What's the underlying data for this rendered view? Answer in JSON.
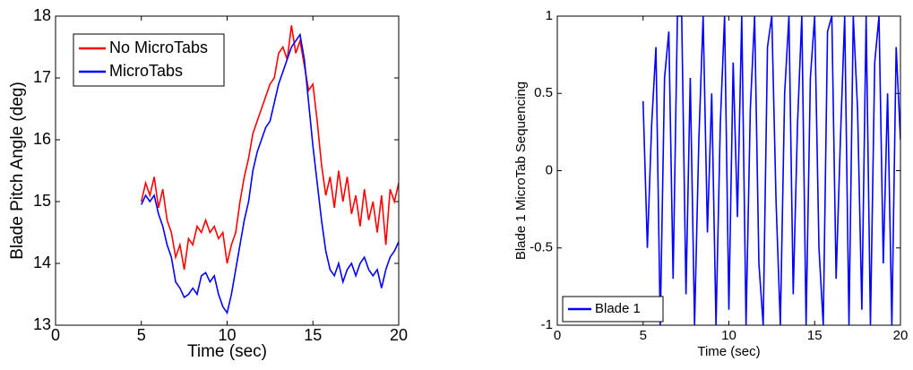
{
  "chart_data": [
    {
      "type": "line",
      "xlabel": "Time (sec)",
      "ylabel": "Blade Pitch Angle (deg)",
      "x": [
        5,
        5.25,
        5.5,
        5.75,
        6,
        6.25,
        6.5,
        6.75,
        7,
        7.25,
        7.5,
        7.75,
        8,
        8.25,
        8.5,
        8.75,
        9,
        9.25,
        9.5,
        9.75,
        10,
        10.25,
        10.5,
        10.75,
        11,
        11.25,
        11.5,
        11.75,
        12,
        12.25,
        12.5,
        12.75,
        13,
        13.25,
        13.5,
        13.75,
        14,
        14.25,
        14.5,
        14.75,
        15,
        15.25,
        15.5,
        15.75,
        16,
        16.25,
        16.5,
        16.75,
        17,
        17.25,
        17.5,
        17.75,
        18,
        18.25,
        18.5,
        18.75,
        19,
        19.25,
        19.5,
        19.75,
        20
      ],
      "series": [
        {
          "name": "No MicroTabs",
          "color": "#ff0000",
          "values": [
            15.0,
            15.3,
            15.1,
            15.4,
            14.9,
            15.2,
            14.7,
            14.5,
            14.1,
            14.3,
            13.9,
            14.4,
            14.3,
            14.6,
            14.5,
            14.7,
            14.5,
            14.6,
            14.4,
            14.5,
            14.0,
            14.3,
            14.5,
            15.0,
            15.4,
            15.7,
            16.1,
            16.3,
            16.5,
            16.7,
            16.9,
            17.0,
            17.4,
            17.5,
            17.3,
            17.85,
            17.4,
            17.6,
            17.2,
            16.8,
            16.9,
            16.3,
            15.6,
            15.1,
            15.4,
            14.9,
            15.5,
            15.0,
            15.4,
            14.8,
            15.1,
            14.6,
            15.2,
            14.7,
            15.0,
            14.5,
            15.1,
            14.3,
            15.2,
            15.0,
            15.3
          ]
        },
        {
          "name": "MicroTabs",
          "color": "#0000ff",
          "values": [
            14.95,
            15.1,
            15.0,
            15.1,
            14.8,
            14.6,
            14.3,
            14.1,
            13.7,
            13.6,
            13.45,
            13.5,
            13.6,
            13.5,
            13.8,
            13.85,
            13.7,
            13.8,
            13.5,
            13.3,
            13.2,
            13.5,
            13.9,
            14.3,
            14.7,
            15.0,
            15.5,
            15.8,
            16.0,
            16.2,
            16.3,
            16.6,
            16.9,
            17.1,
            17.3,
            17.5,
            17.6,
            17.7,
            17.3,
            16.6,
            15.9,
            15.3,
            14.7,
            14.2,
            13.9,
            13.8,
            14.0,
            13.7,
            13.9,
            14.0,
            13.8,
            14.0,
            14.1,
            13.9,
            13.8,
            13.9,
            13.6,
            13.9,
            14.1,
            14.2,
            14.35
          ]
        }
      ],
      "xlim": [
        0,
        20
      ],
      "xticks": [
        0,
        5,
        10,
        15,
        20
      ],
      "ylim": [
        13,
        18
      ],
      "yticks": [
        13,
        14,
        15,
        16,
        17,
        18
      ],
      "legend": "upper left"
    },
    {
      "type": "line",
      "xlabel": "Time (sec)",
      "ylabel": "Blade 1 MicroTab Sequencing",
      "x": [
        5,
        5.25,
        5.5,
        5.75,
        6,
        6.25,
        6.5,
        6.75,
        7,
        7.25,
        7.5,
        7.75,
        8,
        8.25,
        8.5,
        8.75,
        9,
        9.25,
        9.5,
        9.75,
        10,
        10.25,
        10.5,
        10.75,
        11,
        11.25,
        11.5,
        11.75,
        12,
        12.25,
        12.5,
        12.75,
        13,
        13.25,
        13.5,
        13.75,
        14,
        14.25,
        14.5,
        14.75,
        15,
        15.25,
        15.5,
        15.75,
        16,
        16.25,
        16.5,
        16.75,
        17,
        17.25,
        17.5,
        17.75,
        18,
        18.25,
        18.5,
        18.75,
        19,
        19.25,
        19.5,
        19.75,
        20
      ],
      "series": [
        {
          "name": "Blade 1",
          "color": "#0000ff",
          "values": [
            0.45,
            -0.5,
            0.3,
            0.8,
            -1,
            0.6,
            0.9,
            -0.7,
            1,
            1,
            -0.8,
            0.6,
            -1,
            0.2,
            1,
            -0.4,
            0.5,
            -1,
            0.3,
            1,
            -0.9,
            0.7,
            -0.3,
            1,
            -1,
            0.4,
            1,
            -0.6,
            -1,
            0.8,
            1,
            -0.2,
            -1,
            0.5,
            1,
            -0.8,
            0.3,
            1,
            -1,
            0.6,
            1,
            -0.5,
            -1,
            0.9,
            1,
            -0.7,
            0.2,
            1,
            -1,
            1,
            0.4,
            -0.9,
            1,
            -1,
            0.7,
            1,
            -0.6,
            0.5,
            -1,
            0.8,
            0.2
          ]
        }
      ],
      "xlim": [
        0,
        20
      ],
      "xticks": [
        0,
        5,
        10,
        15,
        20
      ],
      "ylim": [
        -1,
        1
      ],
      "yticks": [
        -1,
        -0.5,
        0,
        0.5,
        1
      ],
      "legend": "lower left"
    }
  ]
}
